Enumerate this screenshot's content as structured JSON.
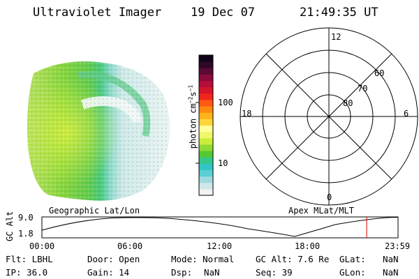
{
  "header": {
    "title": "Ultraviolet Imager",
    "date": "19 Dec 07",
    "time": "21:49:35 UT"
  },
  "colorbar": {
    "label_html": "photon cm",
    "unit_sup1": "−2",
    "unit_mid": "s",
    "unit_sup2": "−1",
    "ticks": [
      "100",
      "10"
    ],
    "colors": [
      "#f2f2f2",
      "#cfe7ea",
      "#9fdadf",
      "#5ccfd5",
      "#34c6c6",
      "#35c88a",
      "#52c934",
      "#8fda35",
      "#c9ee39",
      "#eef86a",
      "#ffff9a",
      "#ffd63a",
      "#ffb319",
      "#ff8a10",
      "#ff5a14",
      "#f2261c",
      "#d6142c",
      "#b40e3a",
      "#8a0a3c",
      "#5a0a34",
      "#2e0828",
      "#120418"
    ]
  },
  "polar_grid": {
    "mlt_labels": {
      "top": "12",
      "left": "18",
      "right": "6",
      "bottom": "0"
    },
    "lat_labels": [
      "60",
      "70",
      "80"
    ]
  },
  "image_labels": {
    "left": "Geographic Lat/Lon",
    "right": "Apex MLat/MLT"
  },
  "timeline": {
    "ylabel": "GC Alt",
    "yticks": [
      "9.0",
      "1.8"
    ],
    "xticks": [
      "00:00",
      "06:00",
      "12:00",
      "18:00",
      "23:59"
    ],
    "current_time_fraction": 0.912,
    "marker_color": "#e00000"
  },
  "info": {
    "row1": {
      "flt": "Flt: LBHL",
      "door": "Door: Open",
      "mode": "Mode: Normal",
      "gcalt": "GC Alt: 7.6 Re",
      "glat_label": "GLat:",
      "glat_value": "NaN"
    },
    "row2": {
      "ip": "IP: 36.0",
      "gain": "Gain: 14",
      "dsp_label": "Dsp:",
      "dsp_value": "NaN",
      "seq": "Seq: 39",
      "glon_label": "GLon:",
      "glon_value": "NaN"
    }
  }
}
